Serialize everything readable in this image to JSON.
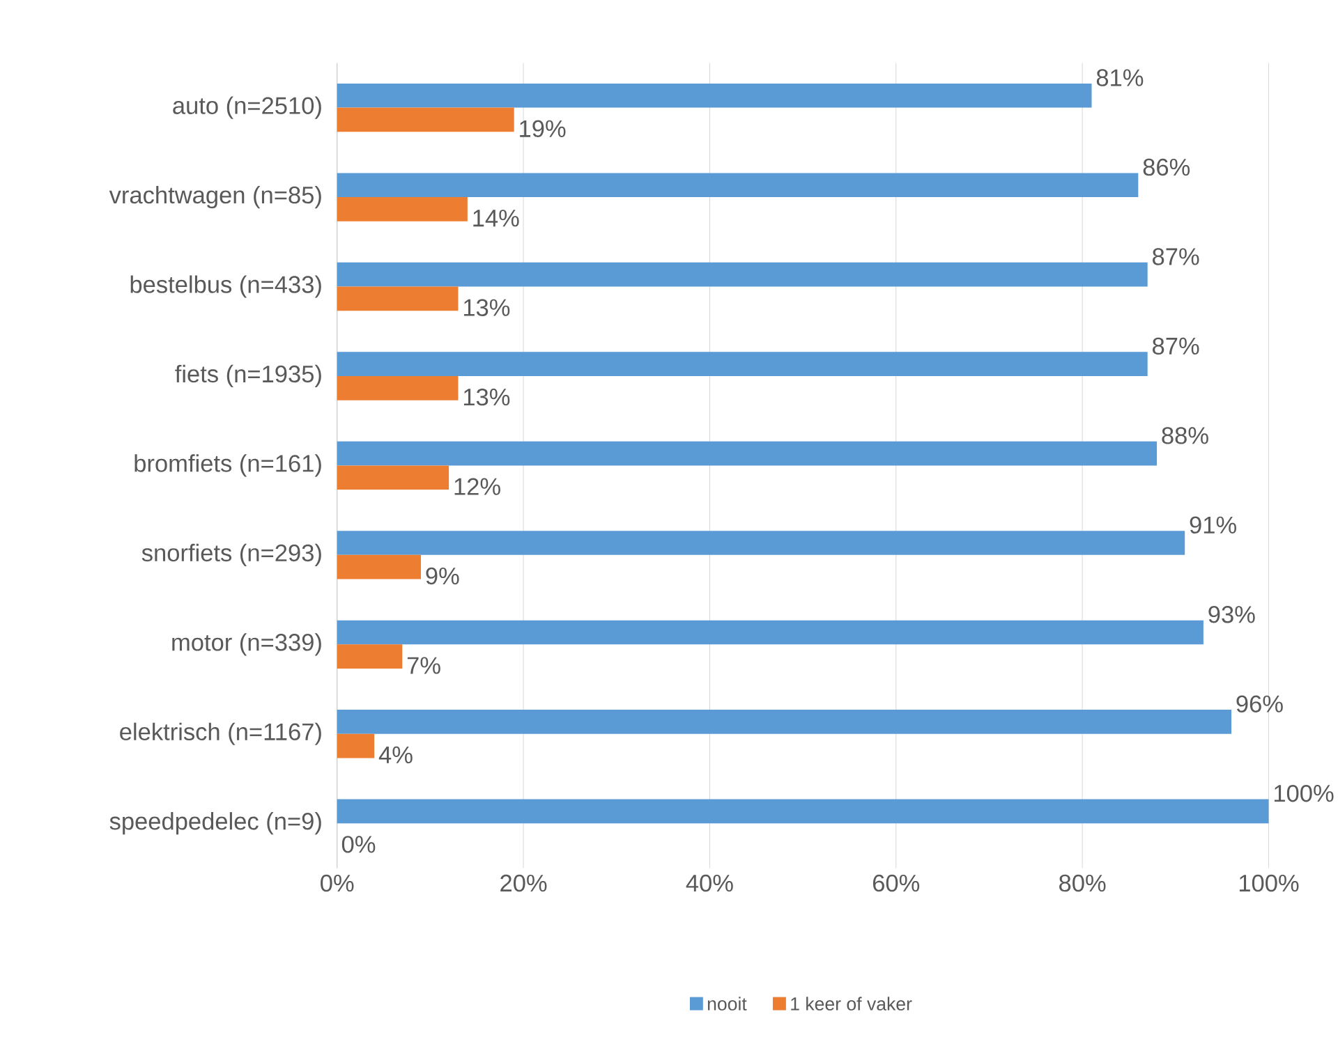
{
  "chart_data": {
    "type": "bar",
    "orientation": "horizontal",
    "categories": [
      "auto (n=2510)",
      "vrachtwagen (n=85)",
      "bestelbus (n=433)",
      "fiets (n=1935)",
      "bromfiets (n=161)",
      "snorfiets (n=293)",
      "motor (n=339)",
      "elektrisch (n=1167)",
      "speedpedelec (n=9)"
    ],
    "series": [
      {
        "name": "nooit",
        "color": "#5b9bd5",
        "values": [
          81,
          86,
          87,
          87,
          88,
          91,
          93,
          96,
          100
        ],
        "value_labels": [
          "81%",
          "86%",
          "87%",
          "87%",
          "88%",
          "91%",
          "93%",
          "96%",
          "100%"
        ]
      },
      {
        "name": "1 keer of vaker",
        "color": "#ed7d31",
        "values": [
          19,
          14,
          13,
          13,
          12,
          9,
          7,
          4,
          0
        ],
        "value_labels": [
          "19%",
          "14%",
          "13%",
          "13%",
          "12%",
          "9%",
          "7%",
          "4%",
          "0%"
        ]
      }
    ],
    "xlim": [
      0,
      100
    ],
    "xticks": [
      {
        "value": 0,
        "label": "0%"
      },
      {
        "value": 20,
        "label": "20%"
      },
      {
        "value": 40,
        "label": "40%"
      },
      {
        "value": 60,
        "label": "60%"
      },
      {
        "value": 80,
        "label": "80%"
      },
      {
        "value": 100,
        "label": "100%"
      }
    ],
    "grid": "x",
    "legend": "bottom"
  }
}
